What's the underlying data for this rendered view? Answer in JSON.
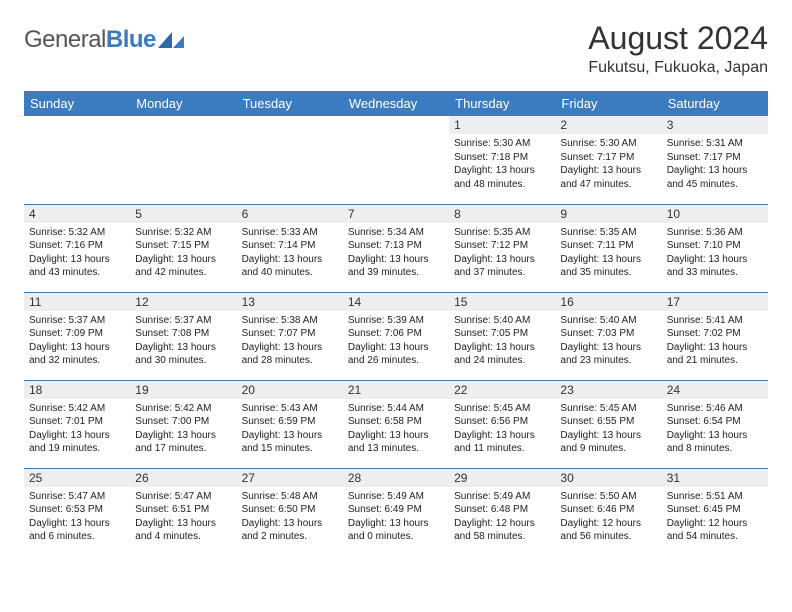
{
  "logo": {
    "word1": "General",
    "word2": "Blue"
  },
  "title": "August 2024",
  "location": "Fukutsu, Fukuoka, Japan",
  "headers": [
    "Sunday",
    "Monday",
    "Tuesday",
    "Wednesday",
    "Thursday",
    "Friday",
    "Saturday"
  ],
  "colors": {
    "accent": "#3b7bbf",
    "header_bg": "#3b7bbf",
    "daynum_bg": "#eceeef"
  },
  "weeks": [
    [
      null,
      null,
      null,
      null,
      {
        "n": "1",
        "sr": "5:30 AM",
        "ss": "7:18 PM",
        "dl": "13 hours and 48 minutes."
      },
      {
        "n": "2",
        "sr": "5:30 AM",
        "ss": "7:17 PM",
        "dl": "13 hours and 47 minutes."
      },
      {
        "n": "3",
        "sr": "5:31 AM",
        "ss": "7:17 PM",
        "dl": "13 hours and 45 minutes."
      }
    ],
    [
      {
        "n": "4",
        "sr": "5:32 AM",
        "ss": "7:16 PM",
        "dl": "13 hours and 43 minutes."
      },
      {
        "n": "5",
        "sr": "5:32 AM",
        "ss": "7:15 PM",
        "dl": "13 hours and 42 minutes."
      },
      {
        "n": "6",
        "sr": "5:33 AM",
        "ss": "7:14 PM",
        "dl": "13 hours and 40 minutes."
      },
      {
        "n": "7",
        "sr": "5:34 AM",
        "ss": "7:13 PM",
        "dl": "13 hours and 39 minutes."
      },
      {
        "n": "8",
        "sr": "5:35 AM",
        "ss": "7:12 PM",
        "dl": "13 hours and 37 minutes."
      },
      {
        "n": "9",
        "sr": "5:35 AM",
        "ss": "7:11 PM",
        "dl": "13 hours and 35 minutes."
      },
      {
        "n": "10",
        "sr": "5:36 AM",
        "ss": "7:10 PM",
        "dl": "13 hours and 33 minutes."
      }
    ],
    [
      {
        "n": "11",
        "sr": "5:37 AM",
        "ss": "7:09 PM",
        "dl": "13 hours and 32 minutes."
      },
      {
        "n": "12",
        "sr": "5:37 AM",
        "ss": "7:08 PM",
        "dl": "13 hours and 30 minutes."
      },
      {
        "n": "13",
        "sr": "5:38 AM",
        "ss": "7:07 PM",
        "dl": "13 hours and 28 minutes."
      },
      {
        "n": "14",
        "sr": "5:39 AM",
        "ss": "7:06 PM",
        "dl": "13 hours and 26 minutes."
      },
      {
        "n": "15",
        "sr": "5:40 AM",
        "ss": "7:05 PM",
        "dl": "13 hours and 24 minutes."
      },
      {
        "n": "16",
        "sr": "5:40 AM",
        "ss": "7:03 PM",
        "dl": "13 hours and 23 minutes."
      },
      {
        "n": "17",
        "sr": "5:41 AM",
        "ss": "7:02 PM",
        "dl": "13 hours and 21 minutes."
      }
    ],
    [
      {
        "n": "18",
        "sr": "5:42 AM",
        "ss": "7:01 PM",
        "dl": "13 hours and 19 minutes."
      },
      {
        "n": "19",
        "sr": "5:42 AM",
        "ss": "7:00 PM",
        "dl": "13 hours and 17 minutes."
      },
      {
        "n": "20",
        "sr": "5:43 AM",
        "ss": "6:59 PM",
        "dl": "13 hours and 15 minutes."
      },
      {
        "n": "21",
        "sr": "5:44 AM",
        "ss": "6:58 PM",
        "dl": "13 hours and 13 minutes."
      },
      {
        "n": "22",
        "sr": "5:45 AM",
        "ss": "6:56 PM",
        "dl": "13 hours and 11 minutes."
      },
      {
        "n": "23",
        "sr": "5:45 AM",
        "ss": "6:55 PM",
        "dl": "13 hours and 9 minutes."
      },
      {
        "n": "24",
        "sr": "5:46 AM",
        "ss": "6:54 PM",
        "dl": "13 hours and 8 minutes."
      }
    ],
    [
      {
        "n": "25",
        "sr": "5:47 AM",
        "ss": "6:53 PM",
        "dl": "13 hours and 6 minutes."
      },
      {
        "n": "26",
        "sr": "5:47 AM",
        "ss": "6:51 PM",
        "dl": "13 hours and 4 minutes."
      },
      {
        "n": "27",
        "sr": "5:48 AM",
        "ss": "6:50 PM",
        "dl": "13 hours and 2 minutes."
      },
      {
        "n": "28",
        "sr": "5:49 AM",
        "ss": "6:49 PM",
        "dl": "13 hours and 0 minutes."
      },
      {
        "n": "29",
        "sr": "5:49 AM",
        "ss": "6:48 PM",
        "dl": "12 hours and 58 minutes."
      },
      {
        "n": "30",
        "sr": "5:50 AM",
        "ss": "6:46 PM",
        "dl": "12 hours and 56 minutes."
      },
      {
        "n": "31",
        "sr": "5:51 AM",
        "ss": "6:45 PM",
        "dl": "12 hours and 54 minutes."
      }
    ]
  ]
}
